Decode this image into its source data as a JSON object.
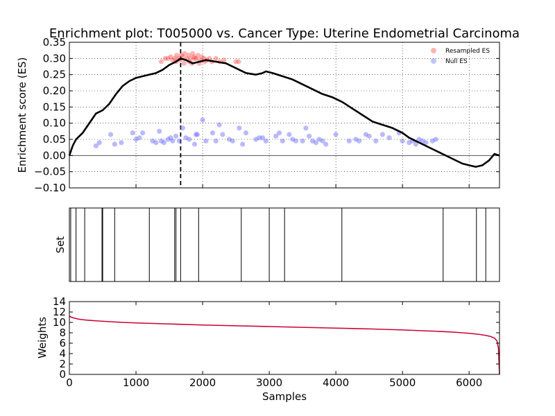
{
  "title": "Enrichment plot: T005000 vs. Cancer Type: Uterine Endometrial Carcinoma",
  "chart_data": [
    {
      "type": "line",
      "panel": "enrichment",
      "ylabel": "Enrichment score (ES)",
      "xlim": [
        0,
        6456
      ],
      "ylim": [
        -0.1,
        0.35
      ],
      "yticks": [
        "−0.10",
        "−0.05",
        "0.00",
        "0.05",
        "0.10",
        "0.15",
        "0.20",
        "0.25",
        "0.30",
        "0.35"
      ],
      "grid": true,
      "legend_position": "top-right",
      "legend": [
        "Resampled ES",
        "Null ES"
      ],
      "peak_x": 1670,
      "series": [
        {
          "name": "Enrichment score",
          "color": "#000000",
          "x": [
            0,
            50,
            100,
            200,
            300,
            400,
            500,
            600,
            700,
            800,
            900,
            1000,
            1100,
            1200,
            1300,
            1400,
            1500,
            1600,
            1670,
            1750,
            1850,
            1950,
            2050,
            2200,
            2350,
            2500,
            2650,
            2800,
            2900,
            2950,
            3050,
            3200,
            3350,
            3500,
            3650,
            3800,
            3950,
            4100,
            4250,
            4400,
            4550,
            4700,
            4850,
            5000,
            5100,
            5200,
            5300,
            5450,
            5600,
            5750,
            5900,
            6000,
            6100,
            6200,
            6300,
            6380,
            6456
          ],
          "y": [
            0.0,
            0.03,
            0.05,
            0.07,
            0.1,
            0.13,
            0.14,
            0.16,
            0.19,
            0.215,
            0.23,
            0.24,
            0.245,
            0.25,
            0.255,
            0.265,
            0.28,
            0.29,
            0.3,
            0.295,
            0.285,
            0.29,
            0.295,
            0.29,
            0.285,
            0.27,
            0.255,
            0.25,
            0.255,
            0.26,
            0.255,
            0.245,
            0.235,
            0.22,
            0.205,
            0.19,
            0.18,
            0.165,
            0.145,
            0.125,
            0.105,
            0.095,
            0.085,
            0.07,
            0.055,
            0.045,
            0.035,
            0.02,
            0.005,
            -0.01,
            -0.025,
            -0.03,
            -0.035,
            -0.03,
            -0.015,
            0.005,
            0.0
          ]
        },
        {
          "name": "Resampled ES",
          "color": "#ff4444",
          "x": [
            1380,
            1440,
            1480,
            1520,
            1550,
            1580,
            1610,
            1640,
            1680,
            1700,
            1730,
            1760,
            1790,
            1820,
            1850,
            1870,
            1900,
            1930,
            1960,
            1990,
            2020,
            2060,
            2100,
            2140,
            2200,
            2260,
            2320,
            2500,
            2540,
            1600,
            1720,
            1800,
            1880,
            1950,
            2030,
            1660,
            1840
          ],
          "y": [
            0.29,
            0.3,
            0.3,
            0.305,
            0.295,
            0.3,
            0.31,
            0.3,
            0.31,
            0.305,
            0.315,
            0.3,
            0.31,
            0.3,
            0.315,
            0.305,
            0.3,
            0.31,
            0.295,
            0.305,
            0.3,
            0.295,
            0.3,
            0.29,
            0.3,
            0.29,
            0.295,
            0.29,
            0.29,
            0.29,
            0.285,
            0.29,
            0.3,
            0.285,
            0.29,
            0.295,
            0.285
          ]
        },
        {
          "name": "Null ES",
          "color": "#6666ff",
          "x": [
            400,
            450,
            620,
            680,
            780,
            950,
            1000,
            1050,
            1100,
            1250,
            1300,
            1350,
            1380,
            1420,
            1480,
            1520,
            1550,
            1600,
            1650,
            1700,
            1750,
            1800,
            1880,
            1900,
            1920,
            2000,
            2050,
            2150,
            2200,
            2250,
            2300,
            2400,
            2450,
            2550,
            2600,
            2650,
            2800,
            2850,
            2900,
            2950,
            3100,
            3150,
            3200,
            3300,
            3350,
            3400,
            3500,
            3550,
            3600,
            3650,
            3700,
            3750,
            3800,
            3850,
            4000,
            4200,
            4300,
            4350,
            4450,
            4500,
            4600,
            4700,
            4800,
            4950,
            5000,
            5100,
            5150,
            5200,
            5250,
            5300,
            5350,
            5450,
            5500
          ],
          "y": [
            0.03,
            0.04,
            0.065,
            0.035,
            0.04,
            0.07,
            0.05,
            0.055,
            0.07,
            0.045,
            0.04,
            0.075,
            0.045,
            0.04,
            0.05,
            0.055,
            0.045,
            0.06,
            0.045,
            0.085,
            0.055,
            0.05,
            0.035,
            0.065,
            0.065,
            0.11,
            0.045,
            0.07,
            0.045,
            0.095,
            0.065,
            0.05,
            0.045,
            0.085,
            0.035,
            0.07,
            0.05,
            0.055,
            0.055,
            0.045,
            0.06,
            0.07,
            0.045,
            0.065,
            0.05,
            0.045,
            0.045,
            0.085,
            0.06,
            0.045,
            0.04,
            0.05,
            0.045,
            0.035,
            0.065,
            0.045,
            0.05,
            0.045,
            0.065,
            0.06,
            0.045,
            0.065,
            0.055,
            0.07,
            0.045,
            0.04,
            0.045,
            0.035,
            0.05,
            0.045,
            0.04,
            0.045,
            0.05
          ]
        }
      ]
    },
    {
      "type": "bar",
      "panel": "set",
      "ylabel": "Set",
      "xlim": [
        0,
        6456
      ],
      "positions": [
        20,
        100,
        230,
        490,
        500,
        680,
        1200,
        1580,
        1600,
        1670,
        1940,
        2580,
        3000,
        3230,
        4090,
        5610,
        6110,
        6250
      ]
    },
    {
      "type": "line",
      "panel": "weights",
      "ylabel": "Weights",
      "xlabel": "Samples",
      "xlim": [
        0,
        6456
      ],
      "ylim": [
        0,
        14
      ],
      "xticks": [
        "0",
        "1000",
        "2000",
        "3000",
        "4000",
        "5000",
        "6000"
      ],
      "yticks": [
        "0",
        "2",
        "4",
        "6",
        "8",
        "10",
        "12",
        "14"
      ],
      "series": [
        {
          "name": "Weights",
          "color": "#cc0033",
          "x": [
            0,
            30,
            80,
            150,
            250,
            400,
            600,
            800,
            1000,
            1500,
            2000,
            2500,
            3000,
            3500,
            4000,
            4500,
            5000,
            5500,
            5800,
            6000,
            6150,
            6250,
            6320,
            6380,
            6420,
            6440,
            6456
          ],
          "y": [
            11.2,
            11.0,
            10.8,
            10.6,
            10.45,
            10.3,
            10.15,
            10.0,
            9.9,
            9.7,
            9.5,
            9.35,
            9.2,
            9.05,
            8.9,
            8.75,
            8.55,
            8.3,
            8.1,
            7.9,
            7.7,
            7.5,
            7.3,
            7.0,
            6.4,
            5.0,
            0.0
          ]
        }
      ]
    }
  ]
}
